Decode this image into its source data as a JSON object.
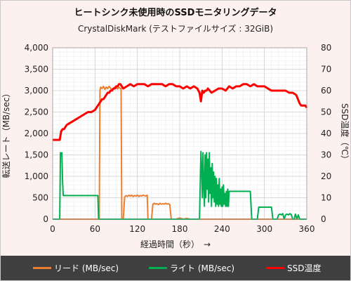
{
  "chart_data": {
    "type": "line",
    "title": "ヒートシンク未使用時のSSDモニタリングデータ",
    "subtitle": "CrystalDiskMark (テストファイルサイズ : 32GiB)",
    "xlabel": "経過時間（秒）　→",
    "ylabel_left": "転送レート（MB/sec）",
    "ylabel_right": "SSD温度（℃）",
    "xlim": [
      0,
      360
    ],
    "ylim_left": [
      0,
      4000
    ],
    "ylim_right": [
      0,
      80
    ],
    "x_ticks": [
      0,
      60,
      120,
      180,
      240,
      300,
      360
    ],
    "y_left_ticks": [
      0,
      500,
      1000,
      1500,
      2000,
      2500,
      3000,
      3500,
      4000
    ],
    "y_right_ticks": [
      0,
      10,
      20,
      30,
      40,
      50,
      60,
      70,
      80
    ],
    "grid": true,
    "legend_position": "bottom",
    "series": [
      {
        "name": "リード (MB/sec)",
        "axis": "left",
        "color": "#ed7d31",
        "x": [
          0,
          60,
          66,
          67,
          68,
          70,
          72,
          74,
          76,
          78,
          80,
          82,
          84,
          86,
          88,
          89,
          90,
          92,
          94,
          96,
          97,
          98,
          100,
          102,
          104,
          106,
          108,
          110,
          112,
          114,
          116,
          118,
          120,
          122,
          124,
          126,
          128,
          130,
          132,
          134,
          135,
          136,
          138,
          140,
          142,
          144,
          146,
          148,
          150,
          152,
          154,
          156,
          158,
          160,
          162,
          164,
          166,
          168,
          170,
          175,
          180,
          185,
          190,
          195,
          200,
          205,
          210,
          215,
          220,
          225,
          230,
          235,
          240,
          245,
          250,
          255,
          260,
          265,
          270,
          275,
          280,
          285,
          290,
          295,
          300,
          305,
          310,
          315,
          320,
          325,
          330,
          335,
          340,
          345,
          350,
          355,
          360
        ],
        "y": [
          0,
          0,
          0,
          3000,
          3080,
          3050,
          3100,
          3030,
          3080,
          3050,
          3100,
          3060,
          3000,
          3050,
          3080,
          3050,
          3080,
          3040,
          3080,
          3050,
          3050,
          0,
          0,
          520,
          550,
          530,
          560,
          540,
          560,
          530,
          550,
          540,
          560,
          530,
          550,
          540,
          560,
          550,
          540,
          560,
          0,
          0,
          0,
          0,
          350,
          370,
          350,
          360,
          340,
          370,
          350,
          360,
          350,
          370,
          350,
          360,
          340,
          0,
          0,
          0,
          30,
          0,
          20,
          0,
          0,
          0,
          0,
          0,
          0,
          0,
          0,
          0,
          0,
          0,
          0,
          0,
          0,
          0,
          0,
          0,
          0,
          0,
          0,
          0,
          0,
          0,
          0,
          0,
          0,
          0,
          0,
          0,
          0,
          0,
          0,
          0,
          0
        ]
      },
      {
        "name": "ライト (MB/sec)",
        "axis": "left",
        "color": "#00b050",
        "x": [
          0,
          10,
          11,
          12,
          13,
          14,
          15,
          16,
          18,
          20,
          30,
          40,
          50,
          60,
          64,
          65,
          66,
          67,
          68,
          70,
          72,
          74,
          76,
          78,
          80,
          90,
          100,
          110,
          120,
          130,
          140,
          150,
          160,
          170,
          180,
          190,
          200,
          205,
          208,
          210,
          211,
          212,
          213,
          214,
          215,
          216,
          217,
          218,
          219,
          220,
          221,
          222,
          223,
          224,
          225,
          226,
          227,
          228,
          229,
          230,
          231,
          232,
          233,
          234,
          235,
          236,
          237,
          238,
          239,
          240,
          241,
          242,
          243,
          244,
          245,
          246,
          247,
          248,
          249,
          250,
          255,
          260,
          265,
          270,
          275,
          280,
          282,
          283,
          285,
          288,
          290,
          292,
          294,
          296,
          298,
          300,
          302,
          304,
          306,
          308,
          310,
          312,
          318,
          320,
          322,
          324,
          326,
          328,
          330,
          332,
          334,
          336,
          338,
          340,
          342,
          344,
          346,
          348,
          350,
          352,
          354,
          356,
          358,
          360
        ],
        "y": [
          0,
          0,
          1550,
          1500,
          1550,
          900,
          550,
          550,
          550,
          550,
          550,
          550,
          550,
          550,
          550,
          0,
          0,
          0,
          0,
          0,
          0,
          0,
          0,
          0,
          0,
          0,
          0,
          0,
          0,
          0,
          0,
          0,
          0,
          0,
          0,
          0,
          0,
          0,
          0,
          1580,
          1200,
          500,
          1550,
          800,
          300,
          1500,
          500,
          1550,
          700,
          1400,
          400,
          1550,
          600,
          1200,
          300,
          1300,
          500,
          1100,
          400,
          1000,
          300,
          950,
          350,
          800,
          300,
          950,
          350,
          700,
          300,
          750,
          300,
          800,
          350,
          600,
          300,
          650,
          300,
          700,
          300,
          650,
          650,
          650,
          650,
          650,
          650,
          650,
          0,
          0,
          0,
          0,
          0,
          280,
          280,
          280,
          280,
          280,
          280,
          280,
          280,
          280,
          280,
          0,
          0,
          100,
          120,
          100,
          130,
          0,
          100,
          120,
          100,
          130,
          110,
          0,
          0,
          120,
          0,
          100,
          0,
          0,
          0,
          0,
          0,
          0
        ]
      },
      {
        "name": "SSD温度",
        "axis": "right",
        "color": "#ff0000",
        "x": [
          0,
          5,
          10,
          12,
          14,
          16,
          18,
          20,
          25,
          30,
          35,
          40,
          45,
          50,
          55,
          60,
          62,
          64,
          66,
          68,
          70,
          72,
          74,
          76,
          78,
          80,
          82,
          84,
          86,
          88,
          90,
          92,
          94,
          96,
          98,
          100,
          105,
          110,
          115,
          120,
          125,
          130,
          135,
          140,
          145,
          150,
          155,
          160,
          165,
          170,
          175,
          180,
          185,
          190,
          195,
          200,
          205,
          208,
          210,
          212,
          214,
          216,
          218,
          220,
          225,
          230,
          235,
          240,
          245,
          250,
          255,
          260,
          265,
          270,
          275,
          280,
          285,
          290,
          295,
          300,
          305,
          310,
          315,
          320,
          325,
          330,
          335,
          340,
          345,
          350,
          352,
          355,
          358,
          360
        ],
        "y": [
          37,
          37,
          37,
          41,
          42,
          42,
          43,
          44,
          45,
          46,
          47,
          48,
          49,
          50,
          50,
          51,
          52,
          53,
          54,
          55,
          56,
          56,
          57,
          58,
          59,
          59,
          60,
          60,
          61,
          61,
          62,
          62,
          63,
          63,
          62,
          61,
          62,
          63,
          62,
          63,
          63,
          63,
          62,
          63,
          63,
          63,
          63,
          62,
          63,
          63,
          62,
          62,
          61,
          62,
          61,
          62,
          61,
          59,
          55,
          60,
          59,
          60,
          60,
          61,
          59,
          60,
          61,
          61,
          60,
          62,
          61,
          62,
          62,
          63,
          63,
          62,
          63,
          62,
          62,
          62,
          61,
          60,
          60,
          60,
          60,
          60,
          59,
          59,
          58,
          54,
          53,
          53,
          53,
          52
        ]
      }
    ]
  }
}
